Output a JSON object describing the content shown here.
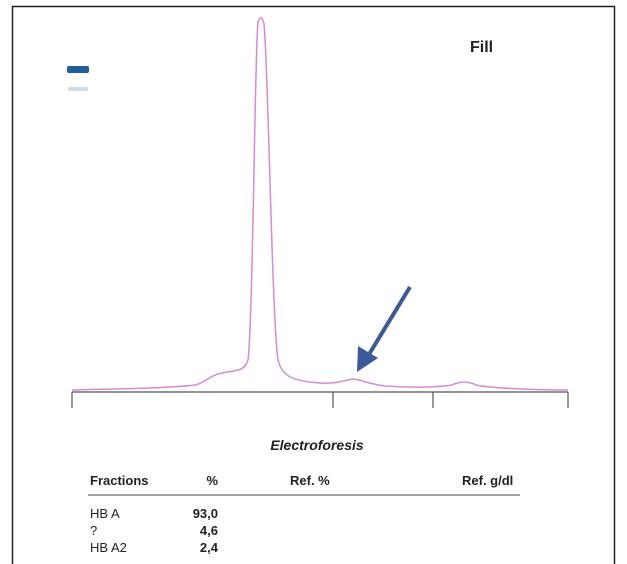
{
  "label": "Fill",
  "title": "Electroforesis",
  "table": {
    "header": [
      "Fractions",
      "%",
      "Ref. %",
      "Ref. g/dl"
    ],
    "rows": [
      [
        "HB A",
        "93,0"
      ],
      [
        "?",
        "4,6"
      ],
      [
        "HB A2",
        "2,4"
      ]
    ]
  }
}
